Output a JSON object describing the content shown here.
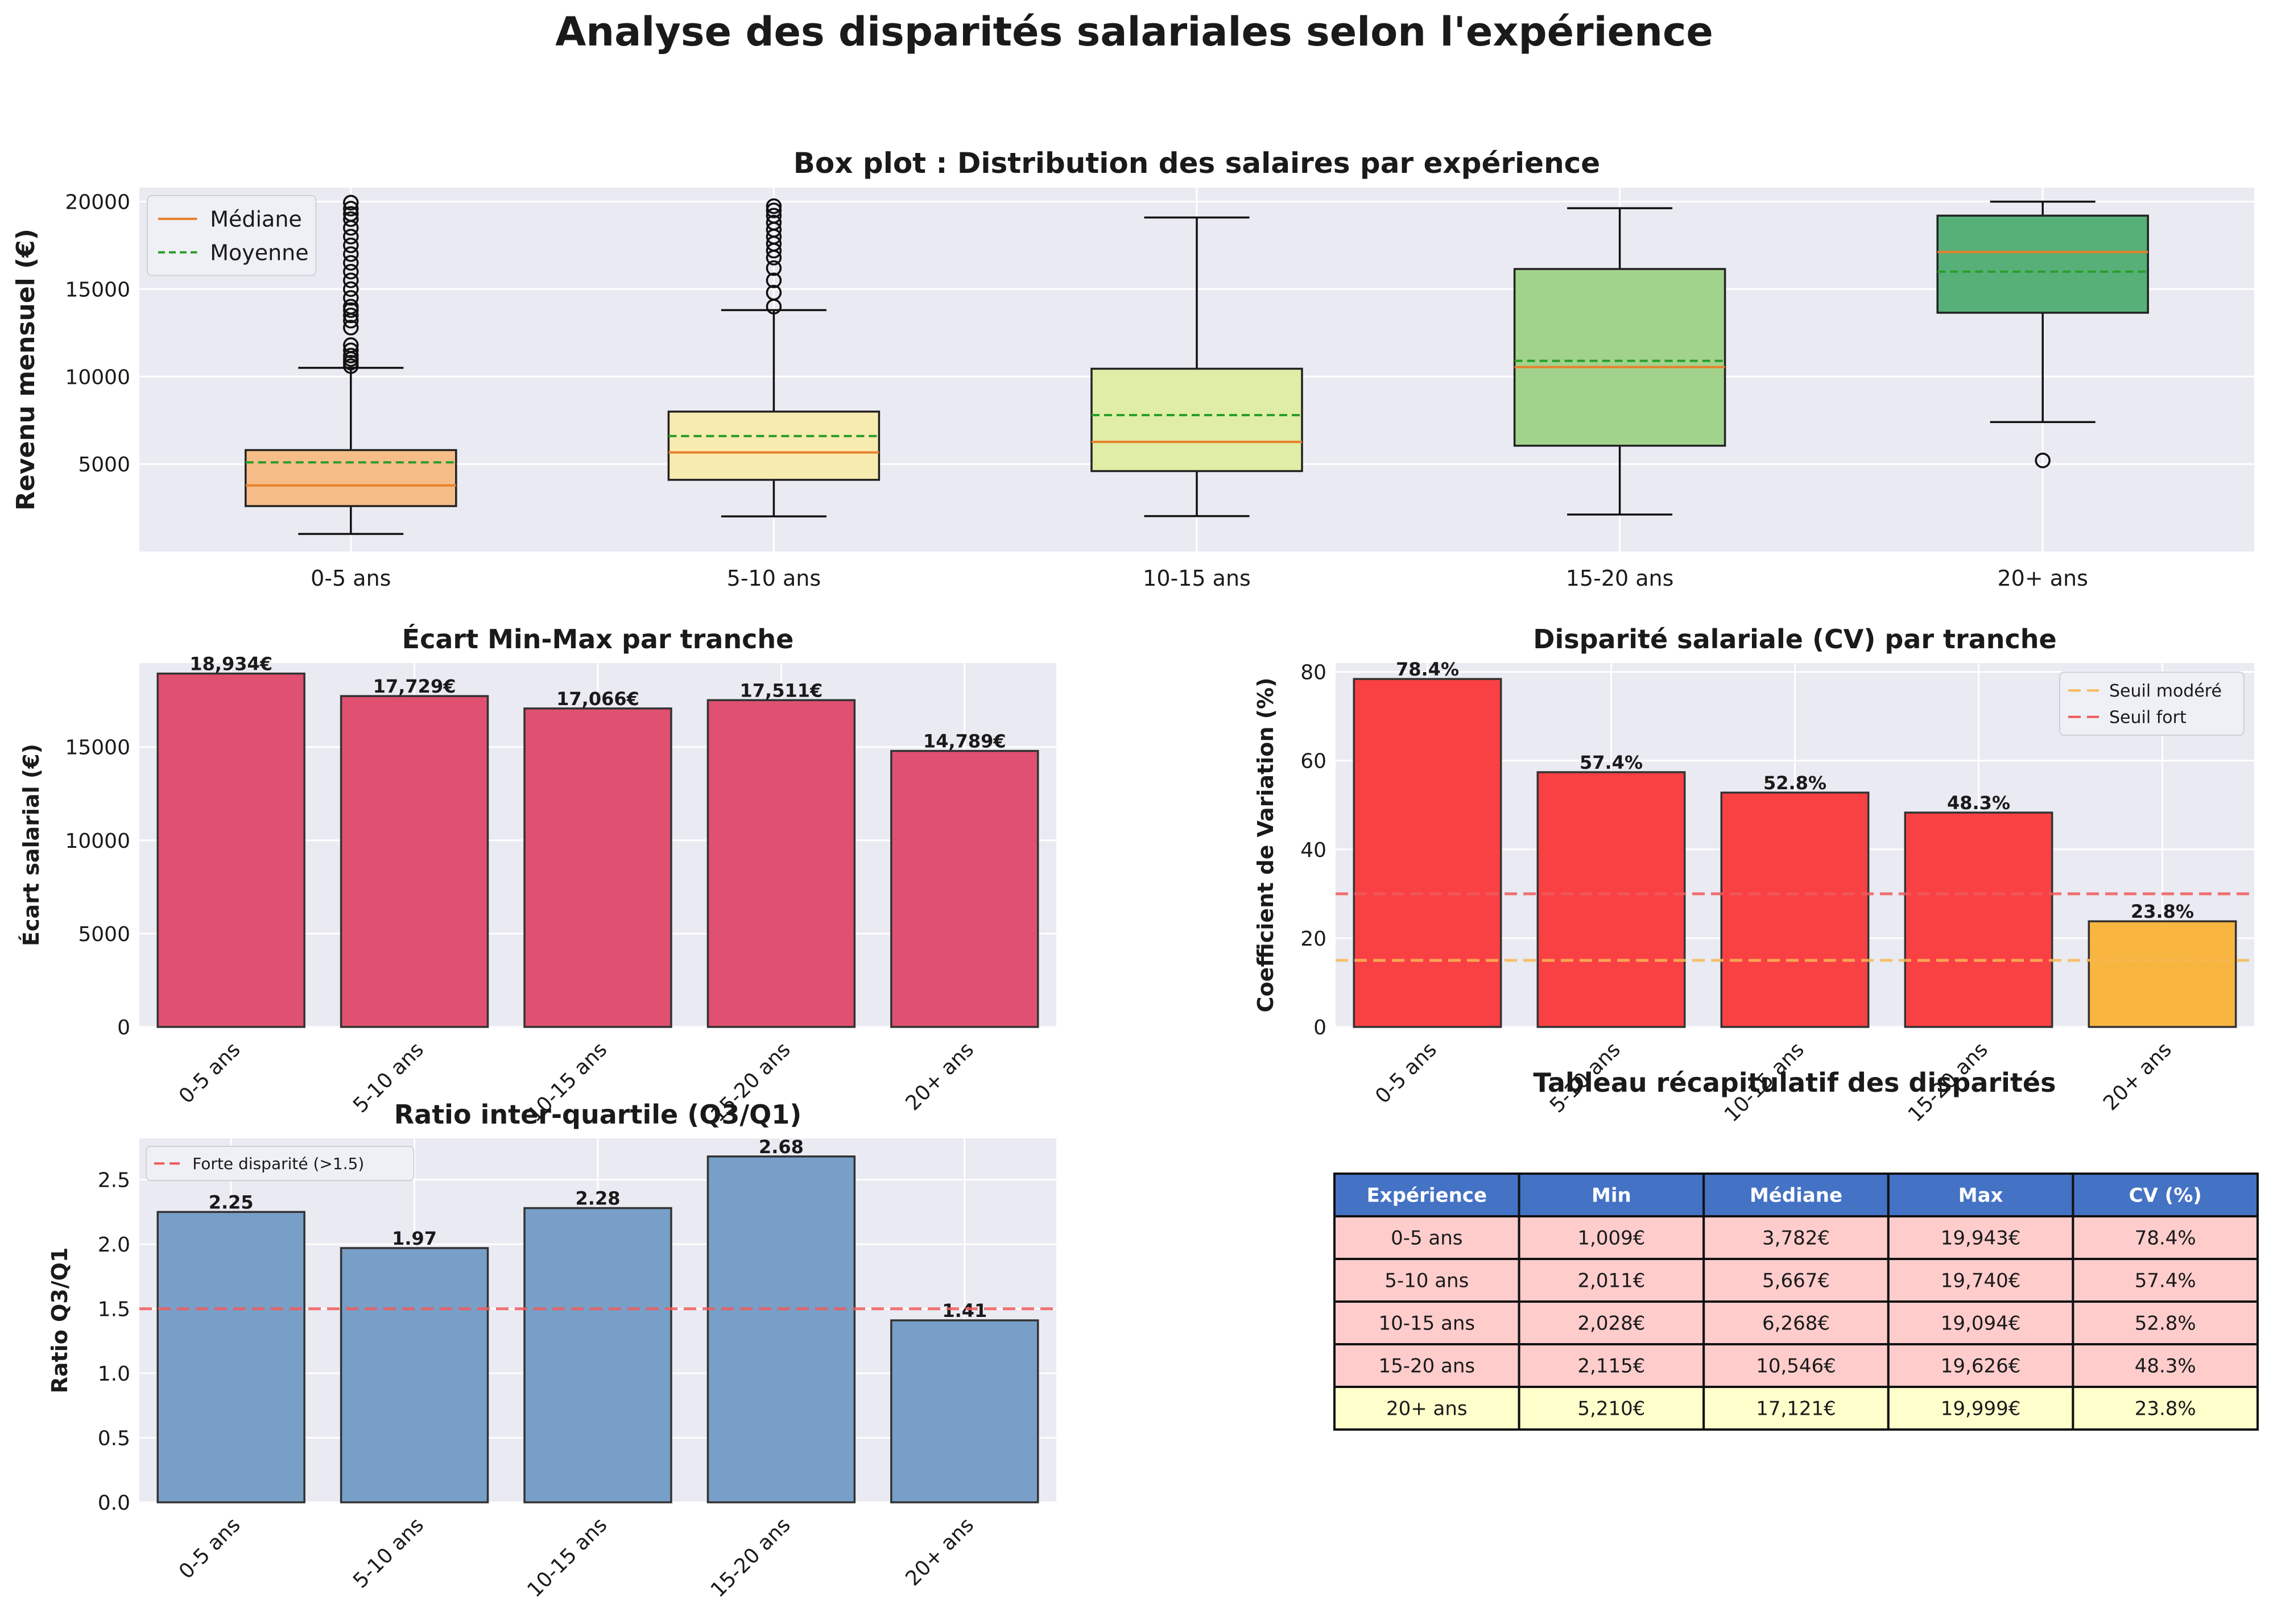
{
  "suptitle": "Analyse des disparités salariales selon l'expérience",
  "colors": {
    "panel_bg": "#eaeaf2",
    "grid": "#ffffff",
    "median_line": "#e8802b",
    "mean_line": "#2a9d2a",
    "range_bar": "#e05070",
    "iqr_bar": "#779fc7",
    "cv_high": "#f94144",
    "cv_moderate": "#f8b540",
    "threshold_moderate": "#f7b955",
    "threshold_high": "#f05a5a",
    "table_header": "#4472c4",
    "table_row_high": "#ffcccc",
    "table_row_moderate": "#ffffcc"
  },
  "chart_data": [
    {
      "type": "boxplot",
      "title": "Box plot : Distribution des salaires par expérience",
      "xlabel": "",
      "ylabel": "Revenu mensuel (€)",
      "ylim": [
        0,
        20800
      ],
      "yticks": [
        5000,
        10000,
        15000,
        20000
      ],
      "grid": true,
      "legend": {
        "placement": "top-left",
        "entries": [
          "Médiane",
          "Moyenne"
        ]
      },
      "categories": [
        "0-5 ans",
        "5-10 ans",
        "10-15 ans",
        "15-20 ans",
        "20+ ans"
      ],
      "box_colors": [
        "#f7bd88",
        "#f8ebb0",
        "#dfeda6",
        "#a2d38d",
        "#57b078"
      ],
      "boxes": [
        {
          "whisker_low": 1009,
          "q1": 2600,
          "median": 3782,
          "q3": 5800,
          "whisker_high": 10500,
          "mean": 5100,
          "outliers": [
            10600,
            10800,
            11000,
            11200,
            11500,
            11800,
            12800,
            13200,
            13500,
            13800,
            14000,
            14500,
            15000,
            15500,
            16000,
            16500,
            17000,
            17500,
            18000,
            18500,
            19000,
            19300,
            19600,
            19943
          ]
        },
        {
          "whisker_low": 2011,
          "q1": 4100,
          "median": 5667,
          "q3": 8000,
          "whisker_high": 13800,
          "mean": 6600,
          "outliers": [
            14000,
            14800,
            15500,
            16200,
            16800,
            17200,
            17600,
            18000,
            18400,
            18800,
            19200,
            19500,
            19740
          ]
        },
        {
          "whisker_low": 2028,
          "q1": 4600,
          "median": 6268,
          "q3": 10450,
          "whisker_high": 19094,
          "mean": 7800,
          "outliers": []
        },
        {
          "whisker_low": 2115,
          "q1": 6050,
          "median": 10546,
          "q3": 16150,
          "whisker_high": 19626,
          "mean": 10900,
          "outliers": []
        },
        {
          "whisker_low": 7400,
          "q1": 13650,
          "median": 17121,
          "q3": 19200,
          "whisker_high": 19999,
          "mean": 16000,
          "outliers": [
            5210
          ]
        }
      ]
    },
    {
      "type": "bar",
      "title": "Écart Min-Max par tranche",
      "xlabel": "",
      "ylabel": "Écart salarial (€)",
      "ylim": [
        0,
        19500
      ],
      "yticks": [
        0,
        5000,
        10000,
        15000
      ],
      "grid": true,
      "categories": [
        "0-5 ans",
        "5-10 ans",
        "10-15 ans",
        "15-20 ans",
        "20+ ans"
      ],
      "values": [
        18934,
        17729,
        17066,
        17511,
        14789
      ],
      "data_labels": [
        "18,934€",
        "17,729€",
        "17,066€",
        "17,511€",
        "14,789€"
      ]
    },
    {
      "type": "bar",
      "title": "Disparité salariale (CV) par tranche",
      "xlabel": "",
      "ylabel": "Coefficient de Variation (%)",
      "ylim": [
        0,
        82
      ],
      "yticks": [
        0,
        20,
        40,
        60,
        80
      ],
      "grid": true,
      "categories": [
        "0-5 ans",
        "5-10 ans",
        "10-15 ans",
        "15-20 ans",
        "20+ ans"
      ],
      "values": [
        78.4,
        57.4,
        52.8,
        48.3,
        23.8
      ],
      "data_labels": [
        "78.4%",
        "57.4%",
        "52.8%",
        "48.3%",
        "23.8%"
      ],
      "reference_lines": [
        {
          "name": "Seuil modéré",
          "value": 15
        },
        {
          "name": "Seuil fort",
          "value": 30
        }
      ],
      "legend": {
        "placement": "top-right",
        "entries": [
          "Seuil modéré",
          "Seuil fort"
        ]
      }
    },
    {
      "type": "bar",
      "title": "Ratio inter-quartile (Q3/Q1)",
      "xlabel": "",
      "ylabel": "Ratio Q3/Q1",
      "ylim": [
        0,
        2.82
      ],
      "yticks": [
        0.0,
        0.5,
        1.0,
        1.5,
        2.0,
        2.5
      ],
      "ytick_labels": [
        "0.0",
        "0.5",
        "1.0",
        "1.5",
        "2.0",
        "2.5"
      ],
      "grid": true,
      "categories": [
        "0-5 ans",
        "5-10 ans",
        "10-15 ans",
        "15-20 ans",
        "20+ ans"
      ],
      "values": [
        2.25,
        1.97,
        2.28,
        2.68,
        1.41
      ],
      "data_labels": [
        "2.25",
        "1.97",
        "2.28",
        "2.68",
        "1.41"
      ],
      "reference_lines": [
        {
          "name": "Forte disparité (>1.5)",
          "value": 1.5
        }
      ],
      "legend": {
        "placement": "top-left",
        "entries": [
          "Forte disparité (>1.5)"
        ]
      }
    },
    {
      "type": "table",
      "title": "Tableau récapitulatif des disparités",
      "columns": [
        "Expérience",
        "Min",
        "Médiane",
        "Max",
        "CV (%)"
      ],
      "rows": [
        [
          "0-5 ans",
          "1,009€",
          "3,782€",
          "19,943€",
          "78.4%"
        ],
        [
          "5-10 ans",
          "2,011€",
          "5,667€",
          "19,740€",
          "57.4%"
        ],
        [
          "10-15 ans",
          "2,028€",
          "6,268€",
          "19,094€",
          "52.8%"
        ],
        [
          "15-20 ans",
          "2,115€",
          "10,546€",
          "19,626€",
          "48.3%"
        ],
        [
          "20+ ans",
          "5,210€",
          "17,121€",
          "19,999€",
          "23.8%"
        ]
      ],
      "row_levels": [
        "high",
        "high",
        "high",
        "high",
        "moderate"
      ]
    }
  ]
}
